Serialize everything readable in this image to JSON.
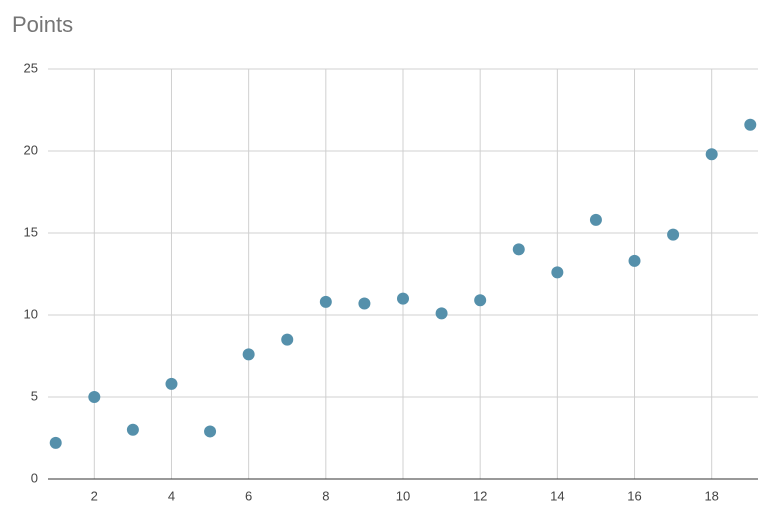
{
  "chart_data": {
    "type": "scatter",
    "title": "Points",
    "x": [
      1,
      2,
      3,
      4,
      5,
      6,
      7,
      8,
      9,
      10,
      11,
      12,
      13,
      14,
      15,
      16,
      17,
      18,
      19
    ],
    "values": [
      2.2,
      5.0,
      3.0,
      5.8,
      2.9,
      7.6,
      8.5,
      10.8,
      10.7,
      11.0,
      10.1,
      10.9,
      14.0,
      12.6,
      15.8,
      13.3,
      14.9,
      19.8,
      21.6
    ],
    "color": "#5590ab",
    "xlim": [
      0.8,
      19.2
    ],
    "xticks": [
      2,
      4,
      6,
      8,
      10,
      12,
      14,
      16,
      18
    ],
    "ylim": [
      0,
      25
    ],
    "yticks": [
      0,
      5,
      10,
      15,
      20,
      25
    ],
    "grid": true
  }
}
